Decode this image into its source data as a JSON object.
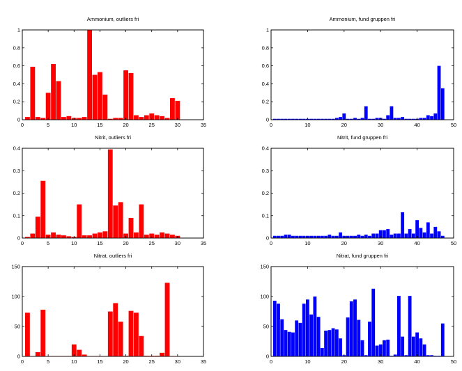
{
  "figure": {
    "colors": {
      "red": "#ff0000",
      "blue": "#0000ff"
    }
  },
  "chart_data": [
    {
      "type": "bar",
      "title": "Ammonium, outliers fri",
      "color": "#ff0000",
      "xlim": [
        0,
        35
      ],
      "ylim": [
        0,
        1
      ],
      "xticks": [
        0,
        5,
        10,
        15,
        20,
        25,
        30,
        35
      ],
      "yticks": [
        0,
        0.2,
        0.4,
        0.6,
        0.8,
        1
      ],
      "yticklabels": [
        "0",
        "0.2",
        "0.4",
        "0.6",
        "0.8",
        "1"
      ],
      "x": [
        1,
        2,
        3,
        4,
        5,
        6,
        7,
        8,
        9,
        10,
        11,
        12,
        13,
        14,
        15,
        16,
        17,
        18,
        19,
        20,
        21,
        22,
        23,
        24,
        25,
        26,
        27,
        28,
        29,
        30
      ],
      "values": [
        0.03,
        0.59,
        0.03,
        0.02,
        0.3,
        0.62,
        0.43,
        0.03,
        0.04,
        0.02,
        0.02,
        0.03,
        1.0,
        0.5,
        0.53,
        0.28,
        0.01,
        0.02,
        0.02,
        0.55,
        0.52,
        0.05,
        0.03,
        0.05,
        0.07,
        0.05,
        0.04,
        0.02,
        0.24,
        0.21
      ]
    },
    {
      "type": "bar",
      "title": "Ammonium, fund gruppen fri",
      "color": "#0000ff",
      "xlim": [
        0,
        50
      ],
      "ylim": [
        0,
        1
      ],
      "xticks": [
        0,
        10,
        20,
        30,
        40,
        50
      ],
      "yticks": [
        0,
        0.2,
        0.4,
        0.6,
        0.8,
        1
      ],
      "yticklabels": [
        "0",
        "0.2",
        "0.4",
        "0.6",
        "0.8",
        "1"
      ],
      "x": [
        1,
        2,
        3,
        4,
        5,
        6,
        7,
        8,
        9,
        10,
        11,
        12,
        13,
        14,
        15,
        16,
        17,
        18,
        19,
        20,
        21,
        22,
        23,
        24,
        25,
        26,
        27,
        28,
        29,
        30,
        31,
        32,
        33,
        34,
        35,
        36,
        37,
        38,
        39,
        40,
        41,
        42,
        43,
        44,
        45,
        46,
        47
      ],
      "values": [
        0.01,
        0.01,
        0.01,
        0.01,
        0.01,
        0.01,
        0.01,
        0.01,
        0.01,
        0.01,
        0.01,
        0.01,
        0.01,
        0.01,
        0.01,
        0.01,
        0.01,
        0.02,
        0.03,
        0.07,
        0.01,
        0.01,
        0.02,
        0.01,
        0.02,
        0.15,
        0.01,
        0.01,
        0.02,
        0.02,
        0.01,
        0.05,
        0.15,
        0.02,
        0.02,
        0.03,
        0.01,
        0.01,
        0.01,
        0.01,
        0.02,
        0.02,
        0.05,
        0.04,
        0.07,
        0.6,
        0.35
      ]
    },
    {
      "type": "bar",
      "title": "Nitrit, outliers fri",
      "color": "#ff0000",
      "xlim": [
        0,
        35
      ],
      "ylim": [
        0,
        0.4
      ],
      "xticks": [
        0,
        5,
        10,
        15,
        20,
        25,
        30,
        35
      ],
      "yticks": [
        0,
        0.1,
        0.2,
        0.3,
        0.4
      ],
      "yticklabels": [
        "0",
        "0.1",
        "0.2",
        "0.3",
        "0.4"
      ],
      "x": [
        1,
        2,
        3,
        4,
        5,
        6,
        7,
        8,
        9,
        10,
        11,
        12,
        13,
        14,
        15,
        16,
        17,
        18,
        19,
        20,
        21,
        22,
        23,
        24,
        25,
        26,
        27,
        28,
        29,
        30
      ],
      "values": [
        0.005,
        0.02,
        0.095,
        0.255,
        0.015,
        0.025,
        0.015,
        0.012,
        0.008,
        0.005,
        0.15,
        0.012,
        0.012,
        0.02,
        0.025,
        0.03,
        0.395,
        0.145,
        0.16,
        0.02,
        0.09,
        0.025,
        0.15,
        0.015,
        0.02,
        0.015,
        0.025,
        0.02,
        0.015,
        0.01
      ]
    },
    {
      "type": "bar",
      "title": "Nitrit, fund gruppen fri",
      "color": "#0000ff",
      "xlim": [
        0,
        50
      ],
      "ylim": [
        0,
        0.4
      ],
      "xticks": [
        0,
        10,
        20,
        30,
        40,
        50
      ],
      "yticks": [
        0,
        0.1,
        0.2,
        0.3,
        0.4
      ],
      "yticklabels": [
        "0",
        "0.1",
        "0.2",
        "0.3",
        "0.4"
      ],
      "x": [
        1,
        2,
        3,
        4,
        5,
        6,
        7,
        8,
        9,
        10,
        11,
        12,
        13,
        14,
        15,
        16,
        17,
        18,
        19,
        20,
        21,
        22,
        23,
        24,
        25,
        26,
        27,
        28,
        29,
        30,
        31,
        32,
        33,
        34,
        35,
        36,
        37,
        38,
        39,
        40,
        41,
        42,
        43,
        44,
        45,
        46,
        47
      ],
      "values": [
        0.01,
        0.01,
        0.01,
        0.015,
        0.015,
        0.01,
        0.01,
        0.01,
        0.01,
        0.01,
        0.01,
        0.01,
        0.01,
        0.01,
        0.01,
        0.015,
        0.01,
        0.01,
        0.025,
        0.01,
        0.01,
        0.01,
        0.01,
        0.015,
        0.01,
        0.015,
        0.01,
        0.02,
        0.02,
        0.035,
        0.035,
        0.04,
        0.015,
        0.02,
        0.02,
        0.115,
        0.02,
        0.04,
        0.02,
        0.08,
        0.045,
        0.025,
        0.07,
        0.02,
        0.05,
        0.03,
        0.01
      ]
    },
    {
      "type": "bar",
      "title": "Nitrat, outliers fri",
      "color": "#ff0000",
      "xlim": [
        0,
        35
      ],
      "ylim": [
        0,
        150
      ],
      "xticks": [
        0,
        5,
        10,
        15,
        20,
        25,
        30,
        35
      ],
      "yticks": [
        0,
        50,
        100,
        150
      ],
      "yticklabels": [
        "0",
        "50",
        "100",
        "150"
      ],
      "x": [
        1,
        2,
        3,
        4,
        5,
        6,
        7,
        8,
        9,
        10,
        11,
        12,
        13,
        14,
        15,
        16,
        17,
        18,
        19,
        20,
        21,
        22,
        23,
        24,
        25,
        26,
        27,
        28,
        29,
        30
      ],
      "values": [
        73,
        0.5,
        7,
        78,
        0.5,
        0.5,
        0.5,
        0.5,
        0.5,
        20,
        11,
        3,
        0.5,
        0.5,
        0.5,
        0.5,
        75,
        89,
        58,
        1,
        76,
        73,
        34,
        1,
        1,
        1,
        6,
        123,
        0.5,
        0.5
      ]
    },
    {
      "type": "bar",
      "title": "Nitrat, fund gruppen fri",
      "color": "#0000ff",
      "xlim": [
        0,
        50
      ],
      "ylim": [
        0,
        150
      ],
      "xticks": [
        0,
        10,
        20,
        30,
        40,
        50
      ],
      "yticks": [
        0,
        50,
        100,
        150
      ],
      "yticklabels": [
        "0",
        "50",
        "100",
        "150"
      ],
      "x": [
        1,
        2,
        3,
        4,
        5,
        6,
        7,
        8,
        9,
        10,
        11,
        12,
        13,
        14,
        15,
        16,
        17,
        18,
        19,
        20,
        21,
        22,
        23,
        24,
        25,
        26,
        27,
        28,
        29,
        30,
        31,
        32,
        33,
        34,
        35,
        36,
        37,
        38,
        39,
        40,
        41,
        42,
        43,
        44,
        45,
        46,
        47
      ],
      "values": [
        93,
        88,
        62,
        44,
        41,
        40,
        60,
        56,
        88,
        95,
        70,
        100,
        66,
        14,
        43,
        44,
        47,
        45,
        30,
        2,
        65,
        92,
        95,
        61,
        27,
        2,
        58,
        113,
        18,
        20,
        27,
        28,
        1,
        3,
        101,
        33,
        2,
        101,
        33,
        40,
        30,
        20,
        2,
        2,
        1,
        1,
        55
      ]
    }
  ]
}
